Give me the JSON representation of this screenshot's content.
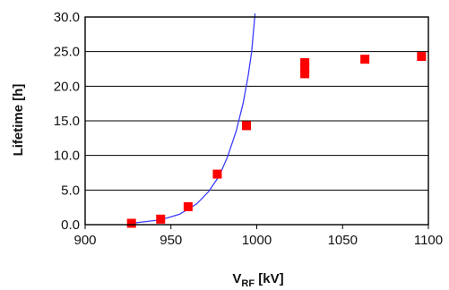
{
  "chart_data": {
    "type": "scatter",
    "title": "",
    "xlabel": {
      "main": "V",
      "sub": "RF",
      "unit": " [kV]"
    },
    "ylabel": "Lifetime [h]",
    "xlim": [
      900,
      1100
    ],
    "ylim": [
      0,
      30
    ],
    "x_ticks": [
      "900",
      "950",
      "1000",
      "1050",
      "1100"
    ],
    "x_tick_values": [
      900,
      950,
      1000,
      1050,
      1100
    ],
    "y_ticks": [
      "0.0",
      "5.0",
      "10.0",
      "15.0",
      "20.0",
      "25.0",
      "30.0"
    ],
    "y_tick_values": [
      0,
      5,
      10,
      15,
      20,
      25,
      30
    ],
    "grid": "horizontal",
    "legend": "none",
    "series": [
      {
        "kind": "points",
        "color": "#ff0000",
        "marker": "square",
        "points": [
          {
            "x": 927,
            "y": 0.2
          },
          {
            "x": 944,
            "y": 0.8
          },
          {
            "x": 960,
            "y": 2.6
          },
          {
            "x": 977,
            "y": 7.3
          },
          {
            "x": 994,
            "y": 14.3
          },
          {
            "x": 1028,
            "y": 21.8
          },
          {
            "x": 1028,
            "y": 22.6
          },
          {
            "x": 1028,
            "y": 23.4
          },
          {
            "x": 1063,
            "y": 23.9
          },
          {
            "x": 1096,
            "y": 24.3
          }
        ]
      },
      {
        "kind": "line",
        "color": "#3b3bff",
        "points": [
          {
            "x": 927,
            "y": 0.2
          },
          {
            "x": 944,
            "y": 0.7
          },
          {
            "x": 955,
            "y": 1.5
          },
          {
            "x": 965,
            "y": 3.0
          },
          {
            "x": 972,
            "y": 4.8
          },
          {
            "x": 978,
            "y": 7.0
          },
          {
            "x": 983,
            "y": 9.8
          },
          {
            "x": 988,
            "y": 13.5
          },
          {
            "x": 992,
            "y": 17.5
          },
          {
            "x": 995,
            "y": 21.5
          },
          {
            "x": 997,
            "y": 25.0
          },
          {
            "x": 999,
            "y": 30.5
          }
        ]
      }
    ]
  }
}
